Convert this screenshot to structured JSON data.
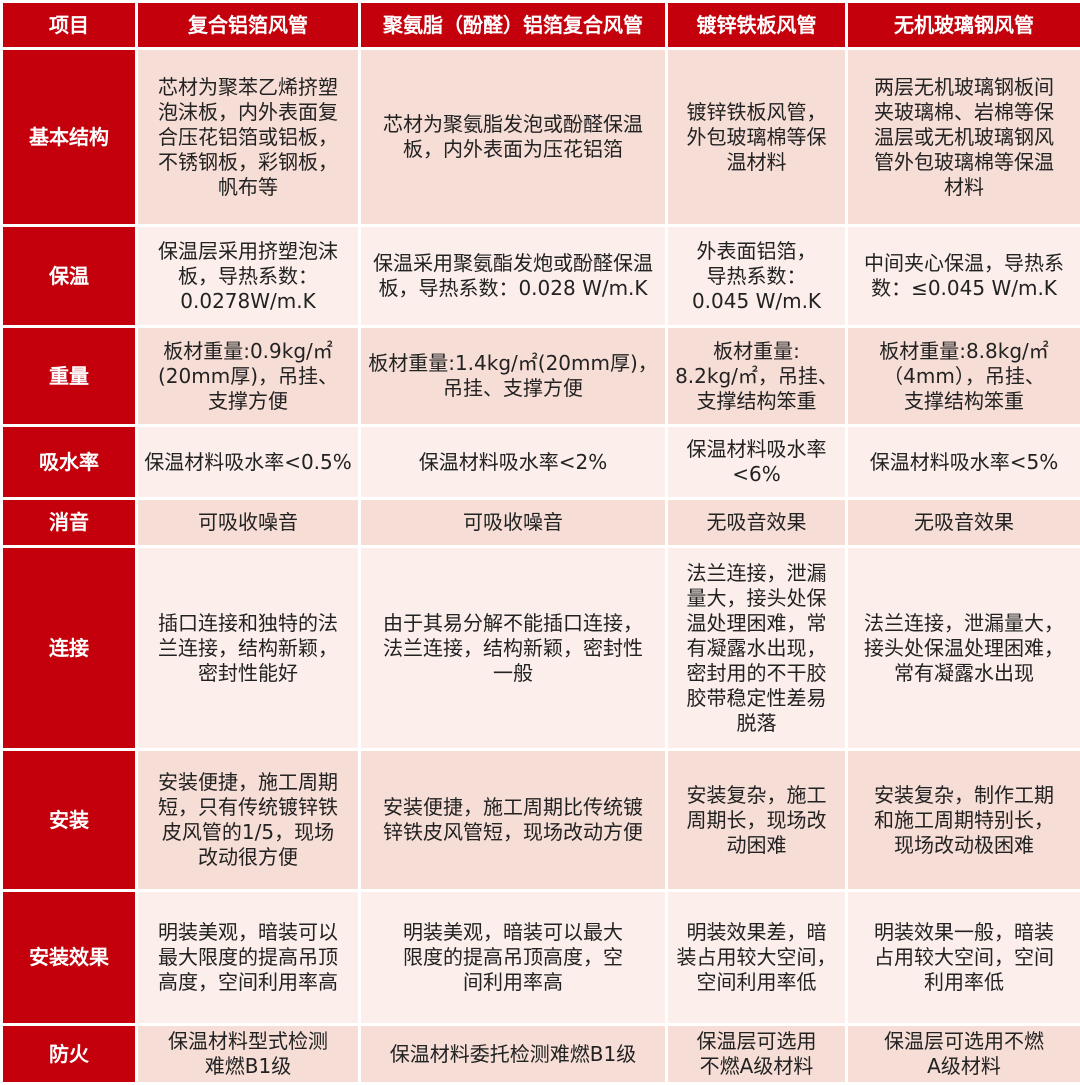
{
  "header": [
    "项目",
    "复合铝箔风管",
    "聚氨脂（酚醛）铝箔复合风管",
    "镀锌铁板风管",
    "无机玻璃钢风管"
  ],
  "rows": [
    {
      "item": "基本结构",
      "cells": [
        "芯材为聚苯乙烯挤塑\n泡沫板，内外表面复\n合压花铝箔或铝板，\n不锈钢板，彩钢板，\n帆布等",
        "芯材为聚氨脂发泡或酚醛保温\n板，内外表面为压花铝箔",
        "镀锌铁板风管，\n外包玻璃棉等保\n温材料",
        "两层无机玻璃钢板间\n夹玻璃棉、岩棉等保\n温层或无机玻璃钢风\n管外包玻璃棉等保温\n材料"
      ]
    },
    {
      "item": "保温",
      "cells": [
        "保温层采用挤塑泡沫\n板，导热系数：\n0.0278W/m.K",
        "保温采用聚氨酯发炮或酚醛保温\n板，导热系数：0.028 W/m.K",
        "外表面铝箔，\n导热系数：\n0.045 W/m.K",
        "中间夹心保温，导热系\n数：≤0.045 W/m.K"
      ]
    },
    {
      "item": "重量",
      "cells": [
        "板材重量:0.9kg/㎡\n(20mm厚)，吊挂、\n支撑方便",
        "板材重量:1.4kg/㎡(20mm厚)，\n吊挂、支撑方便",
        "板材重量:\n8.2kg/㎡，吊挂、\n支撑结构笨重",
        "板材重量:8.8kg/㎡\n（4mm），吊挂、\n支撑结构笨重"
      ]
    },
    {
      "item": "吸水率",
      "cells": [
        "保温材料吸水率<0.5%",
        "保温材料吸水率<2%",
        "保温材料吸水率\n<6%",
        "保温材料吸水率<5%"
      ]
    },
    {
      "item": "消音",
      "cells": [
        "可吸收噪音",
        "可吸收噪音",
        "无吸音效果",
        "无吸音效果"
      ]
    },
    {
      "item": "连接",
      "cells": [
        "插口连接和独特的法\n兰连接，结构新颖，\n密封性能好",
        "由于其易分解不能插口连接，\n法兰连接，结构新颖，密封性\n一般",
        "法兰连接，泄漏\n量大，接头处保\n温处理困难，常\n有凝露水出现，\n密封用的不干胶\n胶带稳定性差易\n脱落",
        "法兰连接，泄漏量大，\n接头处保温处理困难，\n常有凝露水出现"
      ]
    },
    {
      "item": "安装",
      "cells": [
        "安装便捷，施工周期\n短，只有传统镀锌铁\n皮风管的1/5，现场\n改动很方便",
        "安装便捷，施工周期比传统镀\n锌铁皮风管短，现场改动方便",
        "安装复杂，施工\n周期长，现场改\n动困难",
        "安装复杂，制作工期\n和施工周期特别长，\n现场改动极困难"
      ]
    },
    {
      "item": "安装效果",
      "cells": [
        "明装美观，暗装可以\n最大限度的提高吊顶\n高度，空间利用率高",
        "明装美观，暗装可以最大\n限度的提高吊顶高度，空\n间利用率高",
        "明装效果差，暗\n装占用较大空间，\n空间利用率低",
        "明装效果一般，暗装\n占用较大空间，空间\n利用率低"
      ]
    },
    {
      "item": "防火",
      "cells": [
        "保温材料型式检测\n难燃B1级",
        "保温材料委托检测难燃B1级",
        "保温层可选用\n不燃A级材料",
        "保温层可选用不燃\nA级材料"
      ]
    }
  ]
}
